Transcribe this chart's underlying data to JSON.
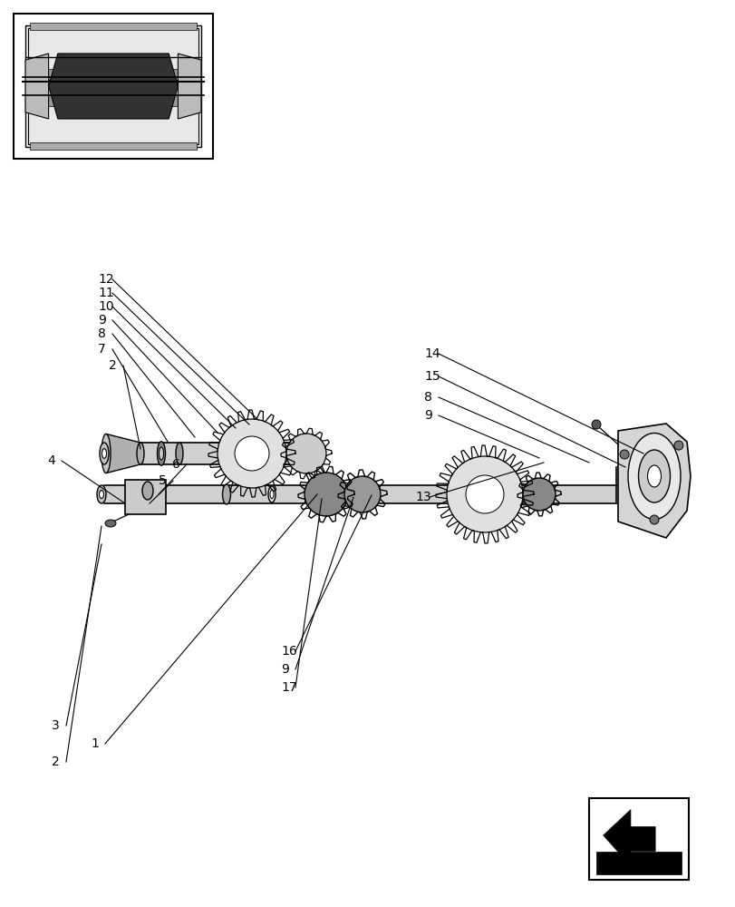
{
  "bg_color": "#ffffff",
  "line_color": "#000000",
  "text_color": "#000000",
  "fig_width": 8.12,
  "fig_height": 10.0,
  "dpi": 100
}
